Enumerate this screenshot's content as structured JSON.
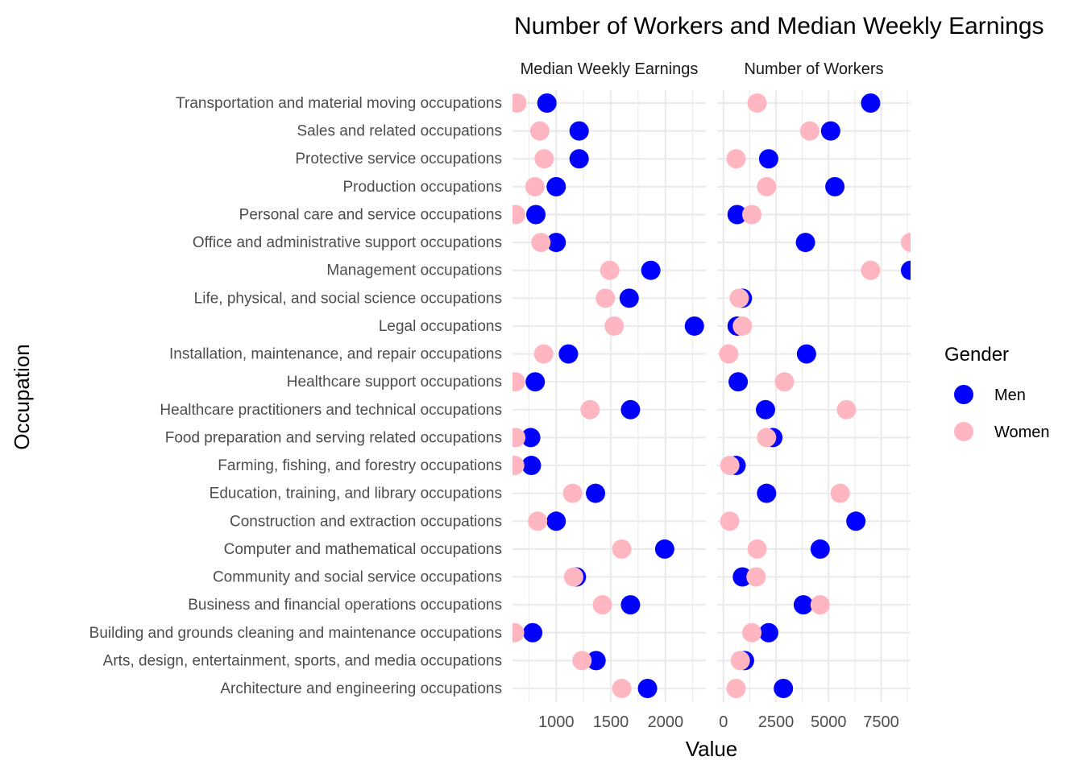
{
  "chart_data": {
    "type": "scatter",
    "title": "Number of Workers and Median Weekly Earnings",
    "xlabel": "Value",
    "ylabel": "Occupation",
    "legend": {
      "title": "Gender",
      "placement": "right",
      "entries": [
        {
          "name": "Men",
          "color": "#0000ff"
        },
        {
          "name": "Women",
          "color": "#ffb6c1"
        }
      ]
    },
    "grid": true,
    "categories": [
      "Architecture and engineering occupations",
      "Arts, design, entertainment, sports, and media occupations",
      "Building and grounds cleaning and maintenance occupations",
      "Business and financial operations occupations",
      "Community and social service occupations",
      "Computer and mathematical occupations",
      "Construction and extraction occupations",
      "Education, training, and library occupations",
      "Farming, fishing, and forestry occupations",
      "Food preparation and serving related occupations",
      "Healthcare practitioners and technical occupations",
      "Healthcare support occupations",
      "Installation, maintenance, and repair occupations",
      "Legal occupations",
      "Life, physical, and social science occupations",
      "Management occupations",
      "Office and administrative support occupations",
      "Personal care and service occupations",
      "Production occupations",
      "Protective service occupations",
      "Sales and related occupations",
      "Transportation and material moving occupations"
    ],
    "panels": [
      {
        "strip": "Median Weekly Earnings",
        "xlim": [
          600,
          2370
        ],
        "xticks": [
          1000,
          1500,
          2000
        ],
        "xtick_labels": [
          "1000",
          "1500",
          "2000"
        ],
        "series": [
          {
            "name": "Men",
            "values": [
              1836,
              1365,
              785,
              1680,
              1185,
              1993,
              1000,
              1360,
              773,
              767,
              1680,
              808,
              1112,
              2265,
              1668,
              1866,
              1000,
              814,
              1000,
              1210,
              1210,
              915
            ]
          },
          {
            "name": "Women",
            "values": [
              1600,
              1236,
              619,
              1423,
              1160,
              1600,
              830,
              1150,
              620,
              630,
              1310,
              627,
              885,
              1531,
              1450,
              1490,
              860,
              630,
              805,
              890,
              850,
              640
            ]
          }
        ]
      },
      {
        "strip": "Number of Workers",
        "xlim": [
          -300,
          8900
        ],
        "xticks": [
          0,
          2500,
          5000,
          7500
        ],
        "xtick_labels": [
          "0",
          "2500",
          "5000",
          "7500"
        ],
        "series": [
          {
            "name": "Men",
            "values": [
              2850,
              1000,
              2150,
              3800,
              900,
              4600,
              6300,
              2050,
              600,
              2350,
              2000,
              700,
              3950,
              650,
              900,
              8900,
              3900,
              650,
              5300,
              2150,
              5100,
              7000
            ]
          },
          {
            "name": "Women",
            "values": [
              600,
              800,
              1350,
              4600,
              1550,
              1600,
              300,
              5550,
              300,
              2050,
              5850,
              2900,
              250,
              900,
              750,
              7000,
              8900,
              1350,
              2050,
              600,
              4100,
              1600
            ]
          }
        ]
      }
    ]
  }
}
